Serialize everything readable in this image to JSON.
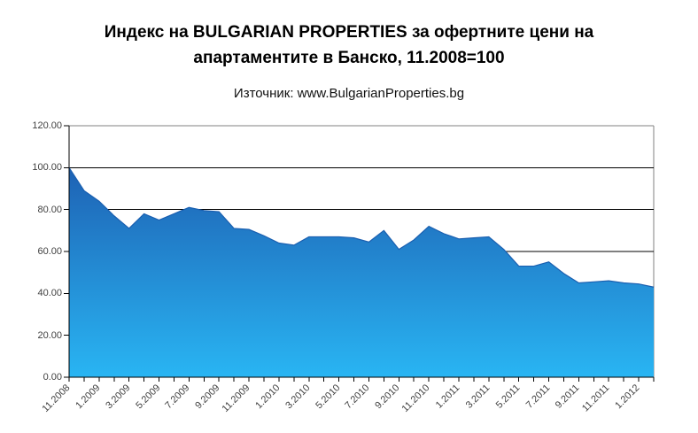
{
  "header": {
    "title_line1": "Индекс на BULGARIAN PROPERTIES за офертните цени на",
    "title_line2": "апартаментите в Банско, 11.2008=100",
    "subtitle": "Източник: www.BulgarianProperties.bg"
  },
  "chart_data": {
    "type": "area",
    "title": "Индекс на BULGARIAN PROPERTIES за офертните цени на апартаментите в Банско, 11.2008=100",
    "source_note": "Източник: www.BulgarianProperties.bg",
    "categories": [
      "11.2008",
      "12.2008",
      "1.2009",
      "2.2009",
      "3.2009",
      "4.2009",
      "5.2009",
      "6.2009",
      "7.2009",
      "8.2009",
      "9.2009",
      "10.2009",
      "11.2009",
      "12.2009",
      "1.2010",
      "2.2010",
      "3.2010",
      "4.2010",
      "5.2010",
      "6.2010",
      "7.2010",
      "8.2010",
      "9.2010",
      "10.2010",
      "11.2010",
      "12.2010",
      "1.2011",
      "2.2011",
      "3.2011",
      "4.2011",
      "5.2011",
      "6.2011",
      "7.2011",
      "8.2011",
      "9.2011",
      "10.2011",
      "11.2011",
      "12.2011",
      "1.2012",
      "2.2012"
    ],
    "values": [
      100,
      89,
      84,
      77,
      71,
      78,
      75,
      78,
      81,
      79.5,
      79,
      71,
      70.5,
      67.5,
      64,
      63,
      67,
      67,
      67,
      66.5,
      64.5,
      70,
      61,
      65.5,
      72,
      68.5,
      66,
      66.5,
      67,
      61,
      53,
      53,
      55,
      49.5,
      45,
      45.5,
      46,
      45,
      44.5,
      43
    ],
    "x_label_interval": 2,
    "x_labels_shown": [
      "11.2008",
      "1.2009",
      "3.2009",
      "5.2009",
      "7.2009",
      "9.2009",
      "11.2009",
      "1.2010",
      "3.2010",
      "5.2010",
      "7.2010",
      "9.2010",
      "11.2010",
      "1.2011",
      "3.2011",
      "5.2011",
      "7.2011",
      "9.2011",
      "11.2011",
      "1.2012"
    ],
    "ylim": [
      0,
      120
    ],
    "ytick_step": 20,
    "ytick_labels": [
      "0.00",
      "20.00",
      "40.00",
      "60.00",
      "80.00",
      "100.00",
      "120.00"
    ],
    "grid": "horizontal-on",
    "legend": "none",
    "colors": {
      "area_gradient_top": "#1E62B4",
      "area_gradient_bottom": "#29B5F3",
      "series_line": "#1A5FB0",
      "gridline": "#000000",
      "plot_border": "#808080",
      "axis": "#000000",
      "label_text": "#404040",
      "title_text": "#000000",
      "background": "#FFFFFF"
    }
  }
}
